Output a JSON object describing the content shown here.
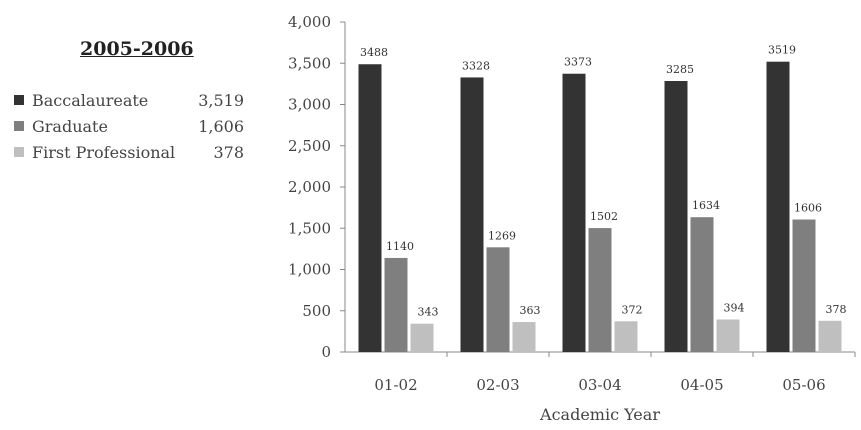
{
  "legend": {
    "title": "2005-2006",
    "items": [
      {
        "label": "Baccalaureate",
        "value": "3,519"
      },
      {
        "label": "Graduate",
        "value": "1,606"
      },
      {
        "label": "First Professional",
        "value": "378"
      }
    ]
  },
  "colors": {
    "baccalaureate": "#333333",
    "graduate": "#7f7f7f",
    "first_professional": "#bfbfbf"
  },
  "chart_data": {
    "type": "bar",
    "categories": [
      "01-02",
      "02-03",
      "03-04",
      "04-05",
      "05-06"
    ],
    "series": [
      {
        "name": "Baccalaureate",
        "values": [
          3488,
          3328,
          3373,
          3285,
          3519
        ]
      },
      {
        "name": "Graduate",
        "values": [
          1140,
          1269,
          1502,
          1634,
          1606
        ]
      },
      {
        "name": "First Professional",
        "values": [
          343,
          363,
          372,
          394,
          378
        ]
      }
    ],
    "data_labels": [
      [
        "3488",
        "3328",
        "3373",
        "3285",
        "3519"
      ],
      [
        "1140",
        "1269",
        "1502",
        "1634",
        "1606"
      ],
      [
        "343",
        "363",
        "372",
        "394",
        "378"
      ]
    ],
    "y_ticks": [
      0,
      500,
      1000,
      1500,
      2000,
      2500,
      3000,
      3500,
      4000
    ],
    "y_tick_labels": [
      "0",
      "500",
      "1,000",
      "1,500",
      "2,000",
      "2,500",
      "3,000",
      "3,500",
      "4,000"
    ],
    "xlabel": "Academic Year",
    "ylabel": "",
    "ylim": [
      0,
      4000
    ],
    "legend": "left",
    "grid": false
  }
}
